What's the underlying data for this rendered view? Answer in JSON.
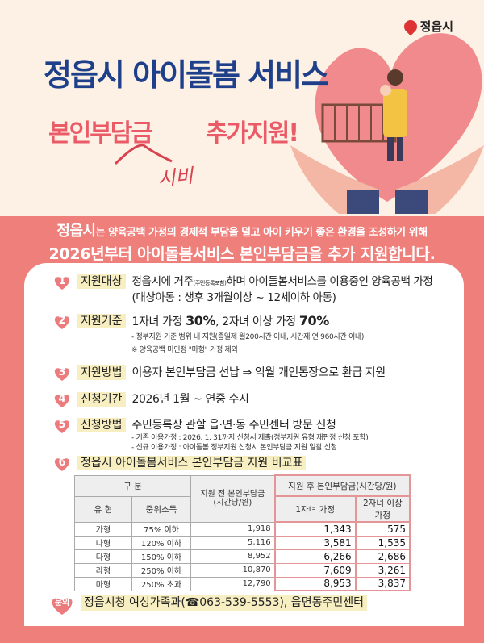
{
  "logo": {
    "text": "정읍시"
  },
  "header": {
    "title": "정읍시 아이돌봄 서비스",
    "subtitle_left": "본인부담금",
    "subtitle_right": "추가지원!",
    "handwritten": "시비"
  },
  "intro": {
    "line1_bold": "정읍시",
    "line1": "는 양육공백 가정의 경제적 부담을 덜고 아이 키우기 좋은 환경을 조성하기 위해",
    "line2": "2026년부터 아이돌봄서비스 본인부담금을 추가 지원합니다."
  },
  "sections": [
    {
      "num": "1",
      "label": "지원대상",
      "text": "정읍시에 거주",
      "text_small": "(주민등록포함)",
      "text_after": "하며 아이돌봄서비스를 이용중인 양육공백 가정",
      "text2": "(대상아동 : 생후 3개월이상 ~ 12세이하 아동)"
    },
    {
      "num": "2",
      "label": "지원기준",
      "text": "1자녀 가정 ",
      "pct1": "30%",
      "mid": ", 2자녀 이상 가정 ",
      "pct2": "70%",
      "note1": "- 정부지원 기준 범위 내 지원(종일제 월200시간 이내, 시간제 연 960시간 이내)",
      "note2": "※ 양육공백 미인정 \"마형\" 가정 제외"
    },
    {
      "num": "3",
      "label": "지원방법",
      "text": "이용자 본인부담금 선납 ⇒ 익월 개인통장으로 환급 지원"
    },
    {
      "num": "4",
      "label": "신청기간",
      "text": "2026년 1월 ~ 연중 수시"
    },
    {
      "num": "5",
      "label": "신청방법",
      "text": "주민등록상 관할 읍·면·동 주민센터 방문 신청",
      "note1": "- 기존 이용가정 : 2026. 1. 31까지 신청서 제출(정부지원 유형 재판정 신청 포함)",
      "note2": "- 신규 이용가정 : 아이돌봄 정부지원 신청시 본인부담금 지원 일괄 신청"
    },
    {
      "num": "6",
      "label": "정읍시 아이돌봄서비스 본인부담금 지원 비교표"
    }
  ],
  "table": {
    "h_group": "구 분",
    "h_before": "지원 전 본인부담금 (시간당/원)",
    "h_after": "지원 후 본인부담금(시간당/원)",
    "h_type": "유 형",
    "h_income": "중위소득",
    "h_one": "1자녀 가정",
    "h_two": "2자녀 이상 가정",
    "rows": [
      {
        "type": "가형",
        "income": "75% 이하",
        "before": "1,918",
        "one": "1,343",
        "two": "575"
      },
      {
        "type": "나형",
        "income": "120% 이하",
        "before": "5,116",
        "one": "3,581",
        "two": "1,535"
      },
      {
        "type": "다형",
        "income": "150% 이하",
        "before": "8,952",
        "one": "6,266",
        "two": "2,686"
      },
      {
        "type": "라형",
        "income": "250% 이하",
        "before": "10,870",
        "one": "7,609",
        "two": "3,261"
      },
      {
        "type": "마형",
        "income": "250% 초과",
        "before": "12,790",
        "one": "8,953",
        "two": "3,837"
      }
    ]
  },
  "contact": {
    "badge": "문의",
    "text": "정읍시청 여성가족과(☎063-539-5553), 읍면동주민센터"
  },
  "colors": {
    "navy": "#1e3f8a",
    "pink": "#ea5b67",
    "salmon": "#ef7f7b",
    "cream": "#fdf0e4",
    "highlight": "#f7eec1"
  }
}
